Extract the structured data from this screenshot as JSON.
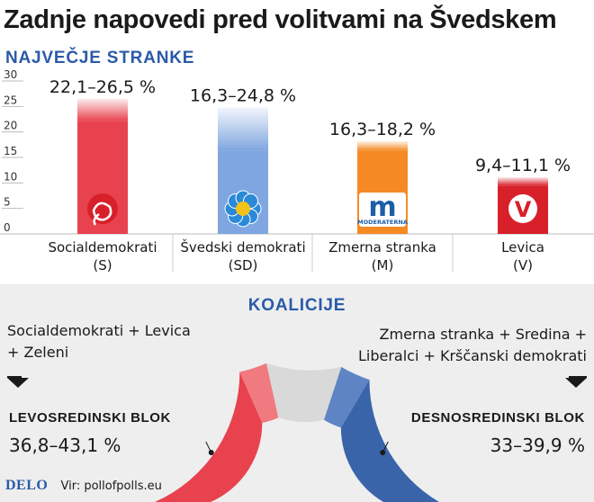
{
  "title": "Zadnje napovedi pred volitvami na Švedskem",
  "subtitle": "NAJVEČJE STRANKE",
  "chart_data": {
    "type": "bar",
    "categories": [
      "Socialdemokrati (S)",
      "Švedski demokrati (SD)",
      "Zmerna stranka (M)",
      "Levica (V)"
    ],
    "category_lines": [
      [
        "Socialdemokrati",
        "(S)"
      ],
      [
        "Švedski demokrati",
        "(SD)"
      ],
      [
        "Zmerna stranka",
        "(M)"
      ],
      [
        "Levica",
        "(V)"
      ]
    ],
    "ranges": [
      [
        22.1,
        26.5
      ],
      [
        16.3,
        24.8
      ],
      [
        16.3,
        18.2
      ],
      [
        9.4,
        11.1
      ]
    ],
    "range_labels": [
      "22,1–26,5 %",
      "16,3–24,8 %",
      "16,3–18,2 %",
      "9,4–11,1 %"
    ],
    "colors": [
      "#e8424e",
      "#7fa6e0",
      "#f58a25",
      "#d8202a"
    ],
    "logos": [
      "rose-logo",
      "flower-logo",
      "moderaterna-logo",
      "v-logo"
    ],
    "logo_text": [
      "",
      "",
      "MODERATERNA",
      "V"
    ],
    "y_ticks": [
      "0",
      "5",
      "10",
      "15",
      "20",
      "25",
      "30"
    ],
    "ylim": [
      0,
      30
    ],
    "grid": false
  },
  "coalitions": {
    "title": "KOALICIJE",
    "left": {
      "desc_lines": [
        "Socialdemokrati + Levica",
        "+ Zeleni"
      ],
      "name": "LEVOSREDINSKI BLOK",
      "range_label": "36,8–43,1 %",
      "range": [
        36.8,
        43.1
      ],
      "color": "#e8424e",
      "color_light": "#f07a80"
    },
    "right": {
      "desc_lines": [
        "Zmerna stranka + Sredina +",
        "Liberalci + Krščanski demokrati"
      ],
      "name": "DESNOSREDINSKI BLOK",
      "range_label": "33–39,9 %",
      "range": [
        33,
        39.9
      ],
      "color": "#3a64aa",
      "color_light": "#5f84c4"
    },
    "middle_color": "#d9d9d9"
  },
  "footer": {
    "brand": "DELO",
    "source": "Vir: pollofpolls.eu"
  }
}
